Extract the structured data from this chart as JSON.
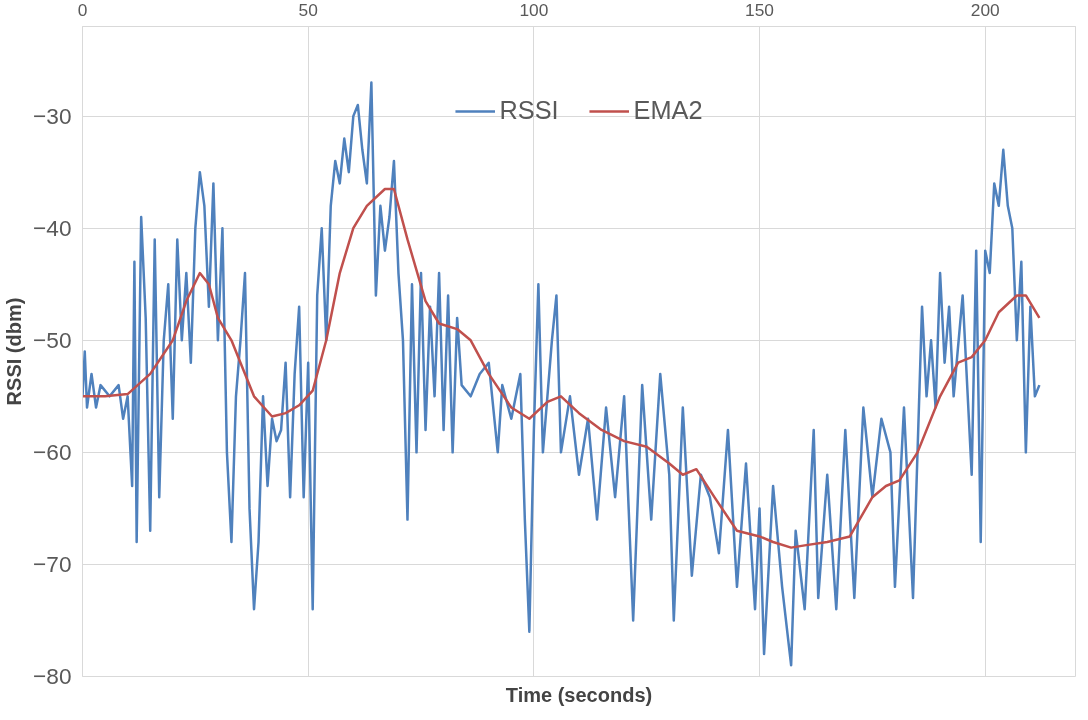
{
  "chart_data": {
    "type": "line",
    "xlabel": "Time (seconds)",
    "ylabel": "RSSI (dbm)",
    "xlim": [
      0,
      220
    ],
    "ylim": [
      -80,
      -22
    ],
    "xticks": [
      0,
      50,
      100,
      150,
      200
    ],
    "yticks": [
      -80,
      -70,
      -60,
      -50,
      -40,
      -30
    ],
    "grid": true,
    "legend": "top",
    "line_style": "solid",
    "marker": "none",
    "series": [
      {
        "name": "RSSI",
        "color": "#4f81bd",
        "x": [
          0,
          0.5,
          1,
          2,
          3,
          4,
          6,
          8,
          9,
          10,
          11,
          11.5,
          12,
          13,
          14,
          15,
          16,
          17,
          18,
          19,
          20,
          21,
          22,
          23,
          24,
          25,
          26,
          27,
          28,
          29,
          30,
          31,
          32,
          33,
          34,
          35,
          36,
          37,
          38,
          39,
          40,
          41,
          42,
          43,
          44,
          45,
          46,
          47,
          48,
          49,
          50,
          51,
          52,
          53,
          54,
          55,
          56,
          57,
          58,
          59,
          60,
          61,
          62,
          63,
          64,
          65,
          66,
          67,
          68,
          69,
          70,
          71,
          72,
          73,
          74,
          75,
          76,
          77,
          78,
          79,
          80,
          81,
          82,
          83,
          84,
          86,
          88,
          90,
          92,
          93,
          95,
          97,
          98,
          99,
          100,
          101,
          102,
          103,
          104,
          105,
          106,
          108,
          110,
          112,
          114,
          116,
          118,
          120,
          122,
          124,
          126,
          128,
          130,
          131,
          133,
          135,
          137,
          139,
          141,
          143,
          145,
          147,
          149,
          150,
          151,
          153,
          155,
          157,
          158,
          160,
          162,
          163,
          165,
          167,
          169,
          171,
          173,
          175,
          177,
          179,
          180,
          182,
          184,
          186,
          187,
          188,
          189,
          190,
          191,
          192,
          193,
          195,
          197,
          198,
          199,
          200,
          201,
          202,
          203,
          204,
          205,
          206,
          207,
          208,
          209,
          210,
          211,
          212
        ],
        "values": [
          -55,
          -51,
          -56,
          -53,
          -56,
          -54,
          -55,
          -54,
          -57,
          -55,
          -63,
          -43,
          -68,
          -39,
          -48,
          -67,
          -41,
          -64,
          -50,
          -45,
          -57,
          -41,
          -50,
          -44,
          -52,
          -40,
          -35,
          -38,
          -47,
          -36,
          -50,
          -40,
          -60,
          -68,
          -55,
          -50,
          -44,
          -65,
          -74,
          -68,
          -55,
          -63,
          -57,
          -59,
          -58,
          -52,
          -64,
          -53,
          -47,
          -64,
          -52,
          -74,
          -46,
          -40,
          -50,
          -38,
          -34,
          -36,
          -32,
          -35,
          -30,
          -29,
          -33,
          -36,
          -27,
          -46,
          -38,
          -42,
          -39,
          -34,
          -44,
          -50,
          -66,
          -45,
          -60,
          -44,
          -58,
          -47,
          -55,
          -44,
          -58,
          -46,
          -60,
          -48,
          -54,
          -55,
          -53,
          -52,
          -60,
          -54,
          -57,
          -53,
          -66,
          -76,
          -58,
          -45,
          -60,
          -55,
          -50,
          -46,
          -60,
          -55,
          -62,
          -57,
          -66,
          -56,
          -64,
          -55,
          -75,
          -54,
          -66,
          -53,
          -62,
          -75,
          -56,
          -71,
          -62,
          -64,
          -69,
          -58,
          -72,
          -61,
          -74,
          -65,
          -78,
          -63,
          -72,
          -79,
          -67,
          -74,
          -58,
          -73,
          -62,
          -74,
          -58,
          -73,
          -56,
          -64,
          -57,
          -60,
          -72,
          -56,
          -73,
          -47,
          -55,
          -50,
          -56,
          -44,
          -52,
          -47,
          -55,
          -46,
          -62,
          -42,
          -68,
          -42,
          -44,
          -36,
          -38,
          -33,
          -38,
          -40,
          -50,
          -43,
          -60,
          -47,
          -55,
          -54
        ]
      },
      {
        "name": "EMA2",
        "color": "#c0504d",
        "x": [
          0,
          5,
          10,
          15,
          20,
          23,
          26,
          28,
          30,
          33,
          35,
          38,
          42,
          45,
          48,
          51,
          54,
          57,
          60,
          63,
          67,
          69,
          72,
          76,
          79,
          83,
          86,
          90,
          95,
          99,
          103,
          106,
          110,
          115,
          120,
          125,
          130,
          133,
          136,
          140,
          145,
          150,
          153,
          157,
          160,
          165,
          170,
          175,
          178,
          181,
          185,
          190,
          194,
          197,
          200,
          203,
          207,
          209,
          212
        ],
        "values": [
          -55,
          -55,
          -54.8,
          -53,
          -50,
          -46.5,
          -44,
          -45,
          -48,
          -50,
          -52,
          -55,
          -56.8,
          -56.5,
          -55.8,
          -54.5,
          -50,
          -44,
          -40,
          -38,
          -36.5,
          -36.5,
          -41,
          -46.5,
          -48.5,
          -49,
          -50,
          -53,
          -56,
          -57,
          -55.5,
          -55,
          -56.5,
          -58,
          -59,
          -59.5,
          -61,
          -62,
          -61.5,
          -64,
          -67,
          -67.5,
          -68,
          -68.5,
          -68.3,
          -68,
          -67.5,
          -64,
          -63,
          -62.5,
          -60,
          -55,
          -52,
          -51.5,
          -50,
          -47.5,
          -46,
          -46,
          -48
        ]
      }
    ]
  }
}
